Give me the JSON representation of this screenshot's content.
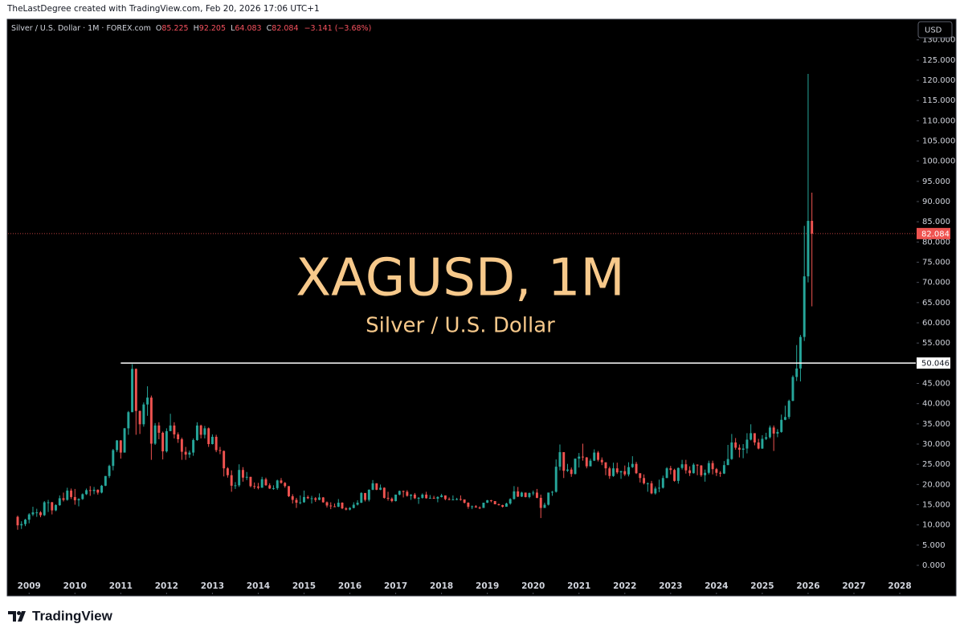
{
  "header": {
    "attribution": "TheLastDegree created with TradingView.com, Feb 20, 2026 17:06 UTC+1"
  },
  "branding": {
    "logo": "TradingView"
  },
  "chart_data": {
    "type": "candlestick",
    "watermark": {
      "title": "XAGUSD, 1M",
      "subtitle": "Silver / U.S. Dollar"
    },
    "legend": {
      "symbol": "Silver / U.S. Dollar · 1M · FOREX.com",
      "open_key": "O",
      "high_key": "H",
      "low_key": "L",
      "close_key": "C",
      "change": "−3.141 (−3.68%)"
    },
    "currency": "USD",
    "up_color": "#26a69a",
    "down_color": "#ef5350",
    "hline": {
      "value": 50.046,
      "x_start": 2011.0,
      "color": "#ffffff"
    },
    "grid": false,
    "xlim": [
      2008.54,
      2028.35
    ],
    "xticks": [
      2009,
      2010,
      2011,
      2012,
      2013,
      2014,
      2015,
      2016,
      2017,
      2018,
      2019,
      2020,
      2021,
      2022,
      2023,
      2024,
      2025,
      2026,
      2027,
      2028
    ],
    "ylim": [
      -7.15,
      134.9
    ],
    "yticks": [
      {
        "value": 0,
        "label": "0.000"
      },
      {
        "value": 5,
        "label": "5.000"
      },
      {
        "value": 10,
        "label": "10.000"
      },
      {
        "value": 15,
        "label": "15.000"
      },
      {
        "value": 20,
        "label": "20.000"
      },
      {
        "value": 25,
        "label": "25.000"
      },
      {
        "value": 30,
        "label": "30.000"
      },
      {
        "value": 35,
        "label": "35.000"
      },
      {
        "value": 40,
        "label": "40.000"
      },
      {
        "value": 45,
        "label": "45.000"
      },
      {
        "value": 55,
        "label": "55.000"
      },
      {
        "value": 60,
        "label": "60.000"
      },
      {
        "value": 65,
        "label": "65.000"
      },
      {
        "value": 70,
        "label": "70.000"
      },
      {
        "value": 75,
        "label": "75.000"
      },
      {
        "value": 80,
        "label": "80.000"
      },
      {
        "value": 85,
        "label": "85.000"
      },
      {
        "value": 90,
        "label": "90.000"
      },
      {
        "value": 95,
        "label": "95.000"
      },
      {
        "value": 100,
        "label": "100.000"
      },
      {
        "value": 105,
        "label": "105.000"
      },
      {
        "value": 110,
        "label": "110.000"
      },
      {
        "value": 115,
        "label": "115.000"
      },
      {
        "value": 120,
        "label": "120.000"
      },
      {
        "value": 125,
        "label": "125.000"
      },
      {
        "value": 130,
        "label": "130.000"
      }
    ],
    "x": [
      2008.75,
      2008.833,
      2008.917,
      2009,
      2009.083,
      2009.167,
      2009.25,
      2009.333,
      2009.417,
      2009.5,
      2009.583,
      2009.667,
      2009.75,
      2009.833,
      2009.917,
      2010,
      2010.083,
      2010.167,
      2010.25,
      2010.333,
      2010.417,
      2010.5,
      2010.583,
      2010.667,
      2010.75,
      2010.833,
      2010.917,
      2011,
      2011.083,
      2011.167,
      2011.25,
      2011.333,
      2011.417,
      2011.5,
      2011.583,
      2011.667,
      2011.75,
      2011.833,
      2011.917,
      2012,
      2012.083,
      2012.167,
      2012.25,
      2012.333,
      2012.417,
      2012.5,
      2012.583,
      2012.667,
      2012.75,
      2012.833,
      2012.917,
      2013,
      2013.083,
      2013.167,
      2013.25,
      2013.333,
      2013.417,
      2013.5,
      2013.583,
      2013.667,
      2013.75,
      2013.833,
      2013.917,
      2014,
      2014.083,
      2014.167,
      2014.25,
      2014.333,
      2014.417,
      2014.5,
      2014.583,
      2014.667,
      2014.75,
      2014.833,
      2014.917,
      2015,
      2015.083,
      2015.167,
      2015.25,
      2015.333,
      2015.417,
      2015.5,
      2015.583,
      2015.667,
      2015.75,
      2015.833,
      2015.917,
      2016,
      2016.083,
      2016.167,
      2016.25,
      2016.333,
      2016.417,
      2016.5,
      2016.583,
      2016.667,
      2016.75,
      2016.833,
      2016.917,
      2017,
      2017.083,
      2017.167,
      2017.25,
      2017.333,
      2017.417,
      2017.5,
      2017.583,
      2017.667,
      2017.75,
      2017.833,
      2017.917,
      2018,
      2018.083,
      2018.167,
      2018.25,
      2018.333,
      2018.417,
      2018.5,
      2018.583,
      2018.667,
      2018.75,
      2018.833,
      2018.917,
      2019,
      2019.083,
      2019.167,
      2019.25,
      2019.333,
      2019.417,
      2019.5,
      2019.583,
      2019.667,
      2019.75,
      2019.833,
      2019.917,
      2020,
      2020.083,
      2020.167,
      2020.25,
      2020.333,
      2020.417,
      2020.5,
      2020.583,
      2020.667,
      2020.75,
      2020.833,
      2020.917,
      2021,
      2021.083,
      2021.167,
      2021.25,
      2021.333,
      2021.417,
      2021.5,
      2021.583,
      2021.667,
      2021.75,
      2021.833,
      2021.917,
      2022,
      2022.083,
      2022.167,
      2022.25,
      2022.333,
      2022.417,
      2022.5,
      2022.583,
      2022.667,
      2022.75,
      2022.833,
      2022.917,
      2023,
      2023.083,
      2023.167,
      2023.25,
      2023.333,
      2023.417,
      2023.5,
      2023.583,
      2023.667,
      2023.75,
      2023.833,
      2023.917,
      2024,
      2024.083,
      2024.167,
      2024.25,
      2024.333,
      2024.417,
      2024.5,
      2024.583,
      2024.667,
      2024.75,
      2024.833,
      2024.917,
      2025,
      2025.083,
      2025.167,
      2025.25,
      2025.333,
      2025.417,
      2025.5,
      2025.583,
      2025.667,
      2025.75,
      2025.833,
      2025.917,
      2026,
      2026.083
    ],
    "open": [
      12.0,
      9.9,
      10.2,
      11.3,
      12.6,
      13.1,
      13.1,
      12.4,
      15.6,
      15.6,
      13.6,
      14.9,
      16.6,
      16.2,
      18.5,
      16.9,
      16.1,
      16.4,
      17.6,
      18.6,
      18.4,
      18.7,
      18.0,
      19.7,
      22.1,
      24.6,
      28.5,
      30.9,
      27.9,
      33.9,
      37.9,
      48.6,
      38.2,
      34.9,
      39.8,
      41.5,
      30.1,
      34.6,
      32.8,
      28.2,
      33.2,
      34.6,
      32.4,
      31.2,
      28.1,
      27.4,
      27.9,
      31.0,
      34.6,
      32.3,
      33.9,
      30.0,
      31.8,
      28.5,
      28.3,
      24.0,
      22.3,
      19.7,
      19.8,
      23.6,
      21.7,
      21.9,
      19.6,
      19.5,
      19.2,
      21.3,
      19.8,
      19.0,
      19.1,
      21.0,
      20.4,
      19.6,
      17.1,
      16.2,
      15.5,
      15.6,
      16.9,
      16.6,
      16.6,
      16.2,
      16.8,
      15.6,
      14.8,
      14.6,
      14.5,
      15.5,
      14.1,
      13.8,
      14.2,
      15.0,
      15.5,
      17.9,
      16.2,
      18.7,
      20.3,
      18.7,
      19.2,
      16.7,
      16.5,
      15.9,
      17.5,
      18.4,
      18.2,
      17.2,
      17.5,
      16.6,
      16.7,
      17.5,
      16.6,
      16.7,
      16.5,
      16.9,
      17.3,
      16.4,
      16.3,
      16.3,
      16.4,
      16.3,
      15.5,
      14.5,
      14.6,
      14.3,
      14.2,
      15.5,
      16.1,
      15.9,
      15.1,
      14.9,
      14.5,
      15.3,
      16.4,
      18.3,
      17.0,
      18.0,
      16.9,
      17.9,
      18.0,
      16.7,
      14.2,
      15.0,
      18.0,
      18.2,
      24.4,
      28.0,
      23.4,
      23.7,
      22.6,
      26.4,
      26.9,
      26.7,
      24.5,
      25.9,
      27.9,
      26.1,
      25.5,
      24.0,
      22.1,
      24.0,
      23.0,
      23.3,
      22.5,
      24.3,
      25.1,
      22.8,
      21.6,
      20.3,
      20.3,
      17.8,
      19.0,
      19.2,
      21.6,
      24.0,
      23.6,
      20.9,
      24.1,
      25.0,
      23.5,
      22.8,
      24.9,
      24.7,
      22.3,
      22.9,
      25.3,
      23.8,
      22.9,
      22.7,
      24.8,
      26.3,
      30.4,
      29.1,
      28.6,
      28.9,
      31.1,
      32.7,
      30.4,
      28.9,
      31.3,
      31.7,
      34.1,
      32.6,
      33.0,
      36.0,
      36.7,
      40.7,
      46.6,
      48.7,
      56.5,
      71.5,
      85.225
    ],
    "high": [
      12.3,
      10.9,
      11.5,
      12.9,
      14.5,
      14.0,
      13.4,
      15.9,
      16.2,
      15.7,
      15.1,
      17.3,
      18.0,
      19.2,
      19.0,
      18.9,
      16.6,
      17.8,
      19.0,
      19.6,
      19.4,
      18.8,
      19.9,
      22.1,
      24.9,
      28.8,
      31.0,
      31.0,
      34.0,
      38.2,
      49.8,
      48.7,
      38.3,
      40.3,
      44.3,
      42.0,
      35.2,
      35.4,
      33.1,
      33.9,
      37.5,
      35.4,
      32.9,
      31.6,
      29.3,
      28.4,
      31.4,
      35.4,
      34.8,
      34.5,
      34.1,
      32.4,
      32.3,
      29.3,
      28.4,
      24.3,
      23.5,
      20.6,
      25.0,
      24.3,
      23.1,
      21.9,
      20.5,
      20.4,
      21.9,
      21.7,
      20.3,
      19.8,
      21.2,
      21.6,
      20.6,
      19.6,
      17.6,
      16.7,
      17.3,
      18.5,
      17.3,
      17.2,
      16.9,
      17.8,
      16.9,
      15.8,
      15.6,
      15.3,
      16.4,
      15.6,
      14.4,
      14.4,
      15.6,
      16.1,
      18.1,
      17.9,
      18.8,
      21.1,
      20.3,
      20.0,
      19.3,
      18.2,
      16.8,
      17.5,
      18.5,
      18.5,
      18.6,
      17.6,
      17.9,
      16.9,
      17.8,
      18.2,
      17.4,
      17.2,
      17.1,
      17.7,
      17.3,
      16.8,
      17.3,
      16.7,
      17.3,
      16.3,
      15.6,
      14.8,
      14.9,
      14.6,
      15.5,
      16.2,
      16.2,
      15.9,
      15.3,
      15.0,
      15.5,
      16.6,
      19.6,
      19.4,
      18.2,
      18.0,
      18.0,
      18.5,
      18.9,
      17.5,
      15.5,
      18.0,
      18.4,
      26.2,
      29.9,
      28.0,
      25.1,
      24.2,
      26.4,
      27.8,
      30.1,
      26.8,
      26.4,
      28.7,
      28.3,
      26.7,
      24.9,
      24.4,
      25.4,
      25.4,
      23.4,
      24.7,
      25.5,
      27.0,
      25.6,
      22.7,
      22.5,
      20.5,
      20.9,
      19.5,
      21.2,
      22.2,
      24.3,
      24.6,
      23.9,
      24.2,
      26.1,
      26.1,
      24.5,
      25.3,
      25.0,
      24.8,
      23.7,
      25.9,
      25.9,
      24.1,
      23.3,
      25.8,
      29.8,
      32.5,
      31.5,
      29.9,
      30.0,
      32.7,
      34.9,
      32.6,
      31.3,
      32.2,
      32.8,
      34.6,
      34.6,
      33.7,
      37.3,
      39.5,
      41.0,
      47.0,
      54.5,
      57.0,
      84.0,
      121.6,
      92.205
    ],
    "low": [
      8.8,
      9.0,
      9.7,
      10.4,
      12.2,
      12.0,
      11.9,
      12.2,
      13.2,
      12.6,
      13.4,
      14.7,
      15.8,
      16.0,
      16.4,
      15.0,
      14.6,
      16.2,
      17.4,
      17.2,
      17.6,
      17.5,
      17.8,
      19.6,
      21.6,
      23.5,
      28.0,
      26.4,
      27.9,
      32.3,
      37.9,
      32.3,
      32.5,
      34.3,
      37.0,
      26.1,
      29.8,
      31.2,
      26.2,
      27.9,
      33.2,
      31.4,
      30.3,
      26.1,
      26.1,
      26.6,
      27.1,
      30.8,
      31.4,
      31.4,
      29.3,
      29.9,
      28.0,
      27.5,
      22.0,
      21.7,
      18.2,
      18.9,
      19.4,
      20.7,
      21.1,
      19.3,
      18.9,
      18.8,
      19.2,
      19.7,
      18.9,
      18.7,
      18.7,
      20.2,
      19.2,
      16.9,
      15.3,
      14.2,
      15.1,
      15.5,
      16.4,
      15.3,
      15.7,
      16.1,
      15.5,
      14.3,
      13.9,
      14.4,
      14.4,
      13.9,
      13.6,
      13.6,
      14.1,
      14.8,
      15.4,
      15.8,
      15.8,
      18.6,
      18.6,
      18.6,
      16.5,
      16.0,
      15.6,
      15.8,
      17.3,
      16.8,
      17.0,
      16.2,
      16.4,
      15.2,
      16.5,
      16.5,
      16.6,
      16.5,
      15.6,
      16.8,
      16.1,
      16.1,
      16.1,
      16.1,
      16.0,
      15.3,
      14.0,
      13.9,
      14.3,
      13.9,
      14.2,
      15.4,
      15.6,
      15.1,
      14.8,
      14.3,
      14.5,
      15.0,
      16.3,
      16.9,
      16.9,
      16.8,
      16.6,
      17.3,
      16.6,
      11.7,
      14.3,
      14.8,
      17.2,
      18.0,
      23.5,
      21.6,
      23.1,
      21.9,
      22.5,
      24.2,
      25.9,
      24.0,
      24.5,
      25.8,
      25.7,
      24.8,
      22.3,
      21.4,
      21.9,
      22.6,
      21.4,
      22.1,
      22.0,
      24.1,
      22.6,
      20.5,
      20.0,
      18.2,
      17.6,
      17.5,
      18.1,
      19.0,
      21.6,
      22.5,
      20.7,
      20.2,
      23.7,
      22.7,
      22.1,
      22.7,
      22.3,
      21.9,
      20.7,
      22.5,
      22.5,
      22.1,
      21.9,
      22.6,
      24.8,
      26.1,
      28.6,
      26.7,
      26.5,
      27.7,
      30.9,
      29.7,
      28.7,
      28.8,
      31.0,
      31.4,
      28.3,
      31.7,
      32.8,
      35.9,
      36.2,
      40.6,
      45.6,
      45.5,
      55.5,
      70.0,
      64.083
    ],
    "close": [
      9.9,
      10.2,
      11.3,
      12.6,
      13.1,
      13.1,
      12.4,
      15.6,
      15.6,
      13.6,
      14.9,
      16.6,
      16.2,
      18.5,
      16.9,
      16.1,
      16.4,
      17.6,
      18.6,
      18.4,
      18.7,
      18.0,
      19.7,
      22.1,
      24.6,
      28.5,
      30.9,
      27.9,
      33.9,
      37.9,
      48.6,
      38.2,
      34.9,
      39.8,
      41.5,
      30.1,
      34.6,
      32.8,
      28.2,
      33.2,
      34.6,
      32.4,
      31.2,
      28.1,
      27.4,
      27.9,
      31.0,
      34.6,
      32.3,
      33.9,
      30.0,
      31.8,
      28.5,
      28.3,
      24.0,
      22.3,
      19.7,
      19.8,
      23.6,
      21.7,
      21.9,
      19.6,
      19.5,
      19.2,
      21.3,
      19.8,
      19.0,
      19.1,
      21.0,
      20.4,
      19.6,
      17.1,
      16.2,
      15.5,
      15.6,
      16.9,
      16.6,
      16.6,
      16.2,
      16.8,
      15.6,
      14.8,
      14.6,
      14.5,
      15.5,
      14.1,
      13.8,
      14.2,
      15.0,
      15.5,
      17.9,
      16.2,
      18.7,
      20.3,
      18.7,
      19.2,
      16.7,
      16.5,
      15.9,
      17.5,
      18.4,
      18.2,
      17.2,
      17.5,
      16.6,
      16.7,
      17.5,
      16.6,
      16.7,
      16.5,
      16.9,
      17.3,
      16.4,
      16.3,
      16.3,
      16.4,
      16.3,
      15.5,
      14.5,
      14.6,
      14.3,
      14.2,
      15.5,
      16.1,
      15.9,
      15.1,
      14.9,
      14.5,
      15.3,
      16.4,
      18.3,
      17.0,
      18.0,
      16.9,
      17.9,
      18.0,
      16.7,
      14.2,
      15.0,
      18.0,
      18.2,
      24.4,
      28.0,
      23.4,
      23.7,
      22.6,
      26.4,
      26.9,
      26.7,
      24.5,
      25.9,
      27.9,
      26.1,
      25.5,
      24.0,
      22.1,
      24.0,
      23.0,
      23.3,
      22.5,
      24.3,
      25.1,
      22.8,
      21.6,
      20.3,
      20.3,
      17.8,
      19.0,
      19.2,
      21.6,
      24.0,
      23.6,
      20.9,
      24.1,
      25.0,
      23.5,
      22.8,
      24.9,
      24.7,
      22.3,
      22.9,
      25.3,
      23.8,
      22.9,
      22.7,
      24.8,
      26.3,
      30.4,
      29.1,
      28.6,
      28.9,
      31.1,
      32.7,
      30.4,
      28.9,
      31.3,
      31.7,
      34.1,
      32.6,
      33.0,
      36.0,
      36.7,
      40.7,
      46.6,
      48.7,
      56.5,
      71.5,
      85.225,
      82.084
    ]
  }
}
